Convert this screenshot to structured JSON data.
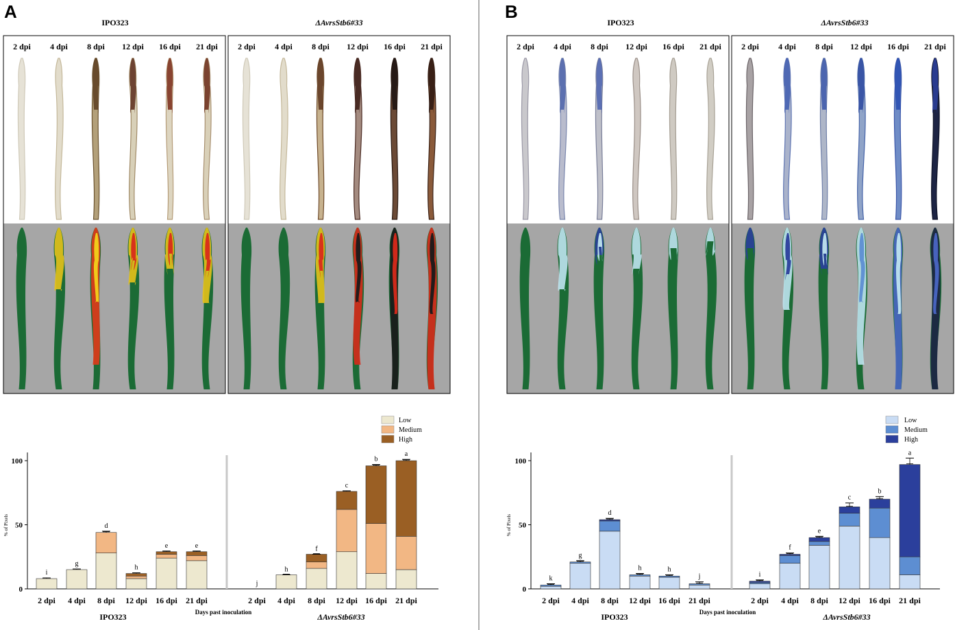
{
  "panels": {
    "A": {
      "letter": "A",
      "strain_left": "IPO323",
      "strain_right": "ΔAvrsStb6#33",
      "dpi_labels": [
        "2 dpi",
        "4 dpi",
        "8 dpi",
        "12 dpi",
        "16 dpi",
        "21 dpi"
      ]
    },
    "B": {
      "letter": "B",
      "strain_left": "IPO323",
      "strain_right": "ΔAvrsStb6#33",
      "dpi_labels": [
        "2 dpi",
        "4 dpi",
        "8 dpi",
        "12 dpi",
        "16 dpi",
        "21 dpi"
      ]
    }
  },
  "colors": {
    "A_low": "#ede8cf",
    "A_medium": "#f2b784",
    "A_high": "#9a5f24",
    "B_low": "#c9dcf4",
    "B_medium": "#5d8ed2",
    "B_high": "#2b3f9c",
    "leaf_green": "#1b6b35",
    "bg_grey": "#a6a6a6"
  },
  "chart_data": [
    {
      "type": "bar",
      "stacked": true,
      "panel": "A",
      "categories": [
        "2 dpi",
        "4 dpi",
        "8 dpi",
        "12 dpi",
        "16 dpi",
        "21 dpi",
        "2 dpi",
        "4 dpi",
        "8 dpi",
        "12 dpi",
        "16 dpi",
        "21 dpi"
      ],
      "groups": [
        {
          "label": "IPO323",
          "indices": [
            0,
            1,
            2,
            3,
            4,
            5
          ]
        },
        {
          "label": "ΔAvrsStb6#33",
          "indices": [
            6,
            7,
            8,
            9,
            10,
            11
          ]
        }
      ],
      "series": [
        {
          "name": "Low",
          "values": [
            8,
            15,
            28,
            8,
            24,
            22,
            0,
            11,
            16,
            29,
            12,
            15
          ]
        },
        {
          "name": "Medium",
          "values": [
            0,
            0,
            16,
            2,
            3,
            4,
            0,
            0,
            5,
            33,
            39,
            26
          ]
        },
        {
          "name": "High",
          "values": [
            0,
            0,
            0,
            2,
            2,
            3,
            0,
            0,
            6,
            14,
            45,
            59
          ]
        }
      ],
      "error_tops": [
        8.5,
        15.5,
        45,
        12.5,
        29.5,
        29.5,
        0,
        11,
        27,
        76.5,
        97,
        101
      ],
      "letters": [
        "i",
        "g",
        "d",
        "h",
        "e",
        "e",
        "j",
        "h",
        "f",
        "c",
        "b",
        "a"
      ],
      "ylabel": "% of Pixels",
      "xlabel": "Days past inoculation",
      "yticks": [
        0,
        50,
        100
      ],
      "ylim": [
        0,
        100
      ]
    },
    {
      "type": "bar",
      "stacked": true,
      "panel": "B",
      "categories": [
        "2 dpi",
        "4 dpi",
        "8 dpi",
        "12 dpi",
        "16 dpi",
        "21 dpi",
        "2 dpi",
        "4 dpi",
        "8 dpi",
        "12 dpi",
        "16 dpi",
        "21 dpi"
      ],
      "groups": [
        {
          "label": "IPO323",
          "indices": [
            0,
            1,
            2,
            3,
            4,
            5
          ]
        },
        {
          "label": "ΔAvrsStb6#33",
          "indices": [
            6,
            7,
            8,
            9,
            10,
            11
          ]
        }
      ],
      "series": [
        {
          "name": "Low",
          "values": [
            2,
            20,
            45,
            10,
            9,
            3,
            4,
            20,
            34,
            49,
            40,
            11
          ]
        },
        {
          "name": "Medium",
          "values": [
            1,
            1,
            8,
            1,
            1,
            1,
            1,
            6,
            3,
            10,
            23,
            14
          ]
        },
        {
          "name": "High",
          "values": [
            0,
            0,
            1,
            0,
            0,
            0,
            1,
            1,
            3,
            5,
            7,
            72
          ]
        }
      ],
      "error_tops": [
        4,
        22,
        55,
        12,
        11,
        5.5,
        7,
        28,
        41,
        67,
        72,
        102
      ],
      "letters": [
        "k",
        "g",
        "d",
        "h",
        "h",
        "j",
        "i",
        "f",
        "e",
        "c",
        "b",
        "a"
      ],
      "ylabel": "% of Pixels",
      "xlabel": "Days past inoculation",
      "yticks": [
        0,
        50,
        100
      ],
      "ylim": [
        0,
        100
      ]
    }
  ]
}
